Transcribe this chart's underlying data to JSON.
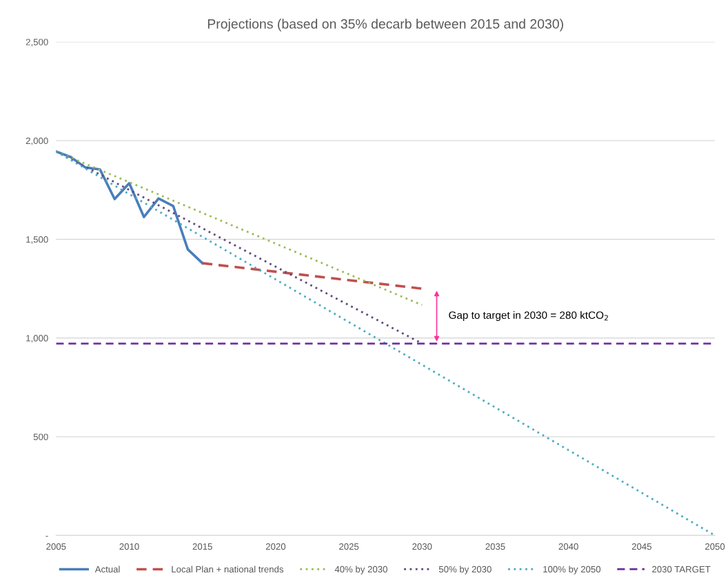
{
  "chart_data": {
    "type": "line",
    "title": "Projections (based on 35% decarb between 2015 and 2030)",
    "series": [
      {
        "name": "Actual",
        "color": "#4a7ebb",
        "line_style": "solid",
        "x": [
          2005,
          2006,
          2007,
          2008,
          2009,
          2010,
          2011,
          2012,
          2013,
          2014,
          2015
        ],
        "values": [
          1945,
          1917,
          1864,
          1854,
          1704,
          1784,
          1613,
          1707,
          1669,
          1449,
          1379
        ]
      },
      {
        "name": "Local Plan + national trends",
        "color": "#c0504d",
        "line_style": "dashed",
        "x": [
          2015,
          2030
        ],
        "values": [
          1379,
          1250
        ]
      },
      {
        "name": "40% by 2030",
        "color": "#9bbb59",
        "line_style": "dotted",
        "x": [
          2005,
          2030
        ],
        "values": [
          1945,
          1167
        ]
      },
      {
        "name": "50% by 2030",
        "color": "#604a7b",
        "line_style": "dotted",
        "x": [
          2005,
          2030
        ],
        "values": [
          1945,
          972
        ]
      },
      {
        "name": "100% by 2050",
        "color": "#4bacc6",
        "line_style": "dotted",
        "x": [
          2005,
          2050
        ],
        "values": [
          1945,
          0
        ]
      }
    ],
    "ref_lines": [
      {
        "axis": "y",
        "value": 972,
        "label": "2030 TARGET",
        "color": "#7030a0",
        "line_style": "dashed"
      }
    ],
    "annotations": [
      "Gap to target in 2030 = 280 ktCO$_{2}$"
    ],
    "xlim": [
      2005,
      2050
    ],
    "xticks": [
      2005,
      2010,
      2015,
      2020,
      2025,
      2030,
      2035,
      2040,
      2045,
      2050
    ],
    "ylim": [
      0,
      2500
    ],
    "yticks": [
      {
        "value": 0,
        "label": "-"
      },
      {
        "value": 500,
        "label": "500"
      },
      {
        "value": 1000,
        "label": "1,000"
      },
      {
        "value": 1500,
        "label": "1,500"
      },
      {
        "value": 2000,
        "label": "2,000"
      },
      {
        "value": 2500,
        "label": "2,500"
      }
    ],
    "grid": "y",
    "legend": "bottom",
    "marker": "none"
  }
}
